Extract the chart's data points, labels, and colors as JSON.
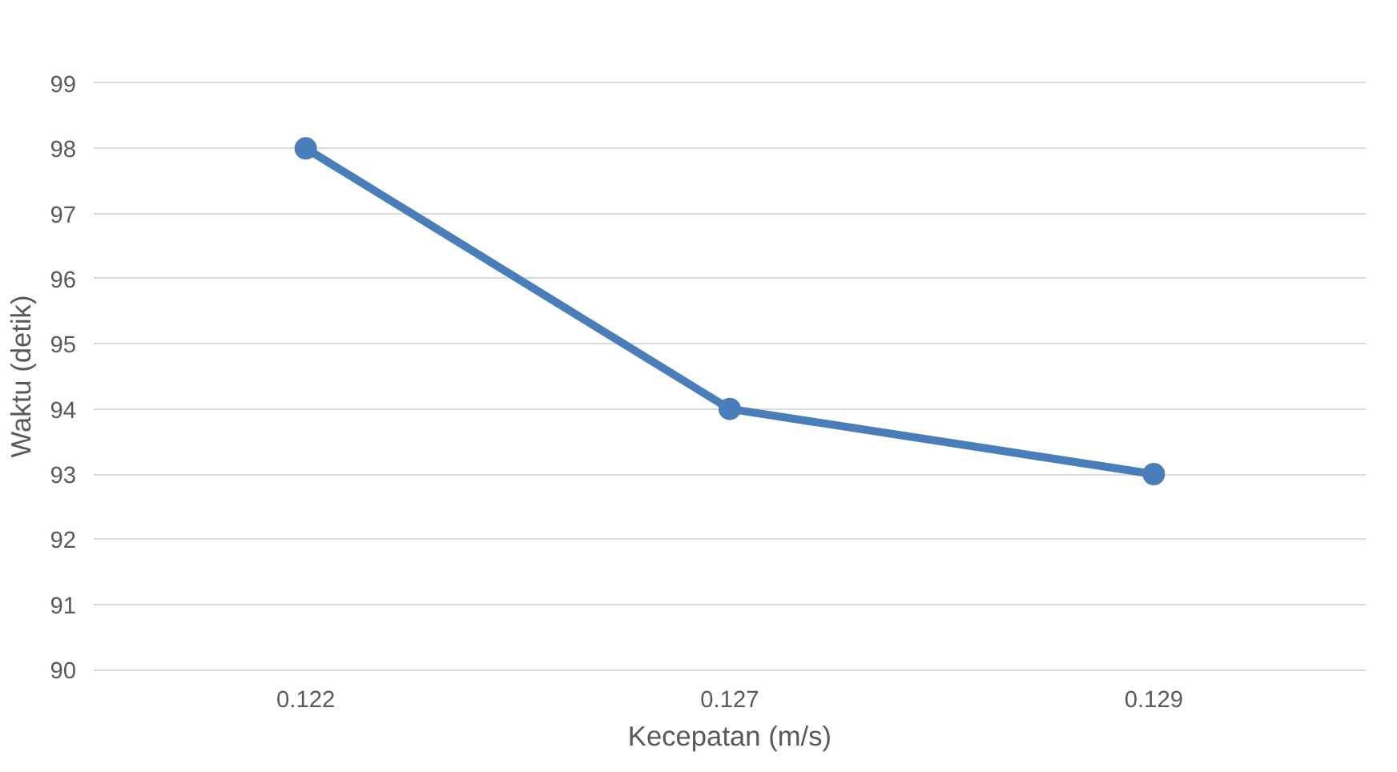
{
  "chart_data": {
    "type": "line",
    "xlabel": "Kecepatan (m/s)",
    "ylabel": "Waktu (detik)",
    "categories": [
      "0.122",
      "0.127",
      "0.129"
    ],
    "series": [
      {
        "color": "#4a7ebb",
        "values": [
          98,
          94,
          93
        ]
      }
    ],
    "ylim": [
      90,
      99
    ],
    "yticks": [
      90,
      91,
      92,
      93,
      94,
      95,
      96,
      97,
      98,
      99
    ],
    "grid": "y",
    "marker": "circle",
    "line_style": "solid"
  }
}
